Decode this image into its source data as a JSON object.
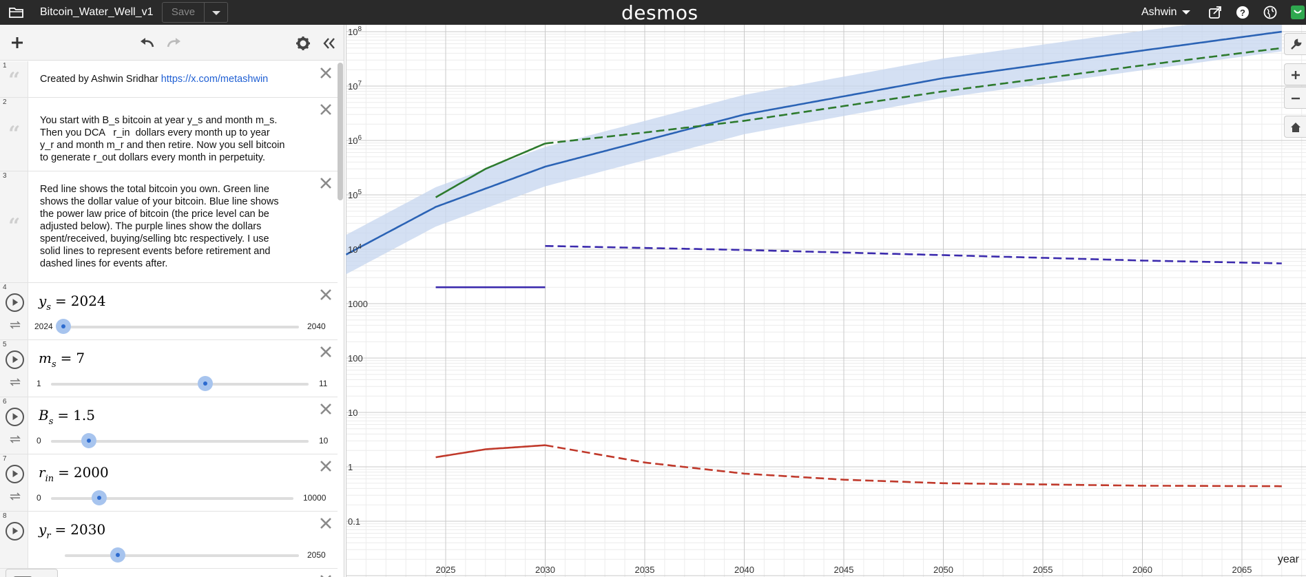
{
  "topbar": {
    "graph_title": "Bitcoin_Water_Well_v1",
    "save_label": "Save",
    "brand": "desmos",
    "user_name": "Ashwin",
    "icons": [
      "folder-icon",
      "share-icon",
      "help-icon",
      "language-icon",
      "profile-icon"
    ]
  },
  "expressions": [
    {
      "index": "1",
      "type": "note",
      "lines": [
        "Created by Ashwin Sridhar "
      ],
      "link": "https://x.com/metashwin"
    },
    {
      "index": "2",
      "type": "note",
      "lines": [
        "You start with B_s bitcoin at year y_s and month m_s.",
        "Then you DCA   r_in  dollars every month up to year",
        "y_r and month m_r and then retire. Now you sell bitcoin",
        "to generate r_out dollars every month in perpetuity."
      ]
    },
    {
      "index": "3",
      "type": "note",
      "lines": [
        "Red line shows the total bitcoin you own. Green line",
        "shows the dollar value of your bitcoin. Blue line shows",
        "the power law price of bitcoin (the price level can be",
        "adjusted below). The purple lines show the dollars",
        "spent/received, buying/selling btc respectively. I use",
        "solid lines to represent events before retirement and",
        "dashed lines for events after."
      ]
    },
    {
      "index": "4",
      "type": "slider",
      "var": "y",
      "sub": "s",
      "value": "2024",
      "min": "2024",
      "max": "2040",
      "fraction": 0.0
    },
    {
      "index": "5",
      "type": "slider",
      "var": "m",
      "sub": "s",
      "value": "7",
      "min": "1",
      "max": "11",
      "fraction": 0.6
    },
    {
      "index": "6",
      "type": "slider",
      "var": "B",
      "sub": "s",
      "value": "1.5",
      "min": "0",
      "max": "10",
      "fraction": 0.15
    },
    {
      "index": "7",
      "type": "slider",
      "var": "r",
      "sub": "in",
      "value": "2000",
      "min": "0",
      "max": "10000",
      "fraction": 0.2
    },
    {
      "index": "8",
      "type": "slider",
      "var": "y",
      "sub": "r",
      "value": "2030",
      "min": "",
      "max": "2050",
      "fraction": 0.3
    }
  ],
  "graph": {
    "x_axis_label": "year",
    "x_ticks": [
      "2025",
      "2030",
      "2035",
      "2040",
      "2045",
      "2050",
      "2055",
      "2060",
      "2065"
    ],
    "y_ticks": [
      "10^8",
      "10^7",
      "10^6",
      "10^5",
      "10^4",
      "1000",
      "100",
      "10",
      "1",
      "0.1"
    ],
    "colors": {
      "red": "#c0392b",
      "green": "#2d7a2d",
      "blue": "#2b63b5",
      "band": "#c5d6ef",
      "purple": "#3b2aad"
    },
    "right_toolbar_icons": [
      "wrench-icon",
      "zoom-in-icon",
      "zoom-out-icon",
      "home-icon"
    ]
  },
  "chart_data": {
    "type": "line",
    "title": "",
    "xlabel": "year",
    "ylabel": "",
    "y_scale": "log",
    "xlim": [
      2020,
      2068
    ],
    "ylim": [
      0.04,
      150000000
    ],
    "series": [
      {
        "name": "",
        "color": "#2b63b5",
        "style": "solid",
        "x": [
          2020,
          2024.5,
          2030,
          2040,
          2050,
          2060,
          2067
        ],
        "y": [
          8000,
          60000,
          330000,
          3000000,
          14000000,
          45000000,
          100000000
        ]
      },
      {
        "name": "",
        "color": "#2d7a2d",
        "style": "solid",
        "x": [
          2024.5,
          2027,
          2030
        ],
        "y": [
          90000,
          300000,
          880000
        ]
      },
      {
        "name": "",
        "color": "#2d7a2d",
        "style": "dashed",
        "x": [
          2030,
          2035,
          2040,
          2050,
          2060,
          2067
        ],
        "y": [
          880000,
          1400000,
          2300000,
          8000000,
          24000000,
          50000000
        ]
      },
      {
        "name": "",
        "color": "#3b2aad",
        "style": "solid",
        "x": [
          2024.5,
          2030
        ],
        "y": [
          2000,
          2000
        ]
      },
      {
        "name": "",
        "color": "#3b2aad",
        "style": "dashed",
        "x": [
          2030,
          2040,
          2050,
          2060,
          2067
        ],
        "y": [
          11500,
          9700,
          7800,
          6200,
          5500
        ]
      },
      {
        "name": "",
        "color": "#c0392b",
        "style": "solid",
        "x": [
          2024.5,
          2027,
          2030
        ],
        "y": [
          1.5,
          2.1,
          2.5
        ]
      },
      {
        "name": "",
        "color": "#c0392b",
        "style": "dashed",
        "x": [
          2030,
          2035,
          2040,
          2045,
          2050,
          2060,
          2067
        ],
        "y": [
          2.5,
          1.2,
          0.75,
          0.58,
          0.5,
          0.45,
          0.44
        ]
      }
    ]
  }
}
